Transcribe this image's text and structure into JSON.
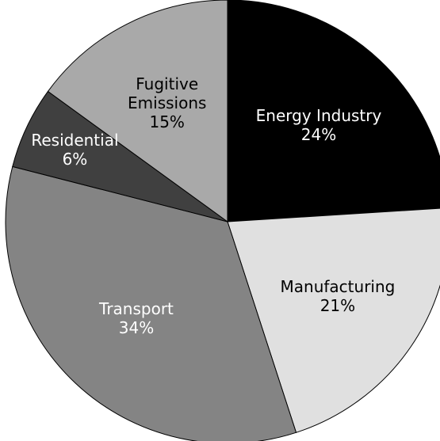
{
  "chart_data": {
    "type": "pie",
    "categories": [
      "Energy Industry",
      "Manufacturing",
      "Transport",
      "Residential",
      "Fugitive Emissions"
    ],
    "values": [
      24,
      21,
      34,
      6,
      15
    ],
    "value_labels": [
      "24%",
      "21%",
      "34%",
      "6%",
      "15%"
    ],
    "colors": [
      "#000000",
      "#e0e0e0",
      "#848484",
      "#404040",
      "#a9a9a9"
    ],
    "label_colors": [
      "#ffffff",
      "#000000",
      "#ffffff",
      "#ffffff",
      "#000000"
    ]
  }
}
